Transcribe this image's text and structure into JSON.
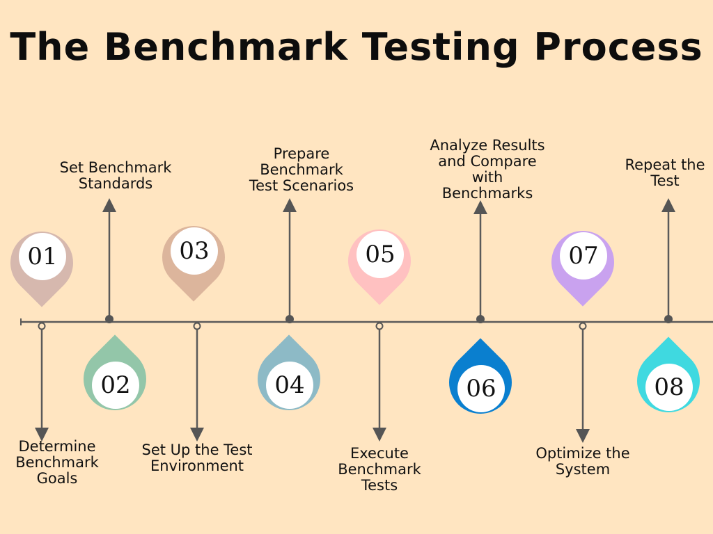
{
  "title": "The Benchmark Testing Process",
  "steps": [
    {
      "number": "01",
      "label": "Determine Benchmark Goals",
      "lines": [
        "Determine",
        "Benchmark",
        "Goals"
      ],
      "color": "#d6b8ae"
    },
    {
      "number": "02",
      "label": "Set Benchmark Standards",
      "lines": [
        "Set Benchmark",
        "Standards"
      ],
      "color": "#93c6a9"
    },
    {
      "number": "03",
      "label": "Set Up the Test Environment",
      "lines": [
        "Set Up the Test",
        "Environment"
      ],
      "color": "#dcb59c"
    },
    {
      "number": "04",
      "label": "Prepare Benchmark Test Scenarios",
      "lines": [
        "Prepare",
        "Benchmark",
        "Test Scenarios"
      ],
      "color": "#8dbac6"
    },
    {
      "number": "05",
      "label": "Execute Benchmark Tests",
      "lines": [
        "Execute",
        "Benchmark",
        "Tests"
      ],
      "color": "#ffc1c1"
    },
    {
      "number": "06",
      "label": "Analyze Results and Compare with Benchmarks",
      "lines": [
        "Analyze Results",
        "and Compare",
        "with",
        "Benchmarks"
      ],
      "color": "#0a7fcf"
    },
    {
      "number": "07",
      "label": "Optimize the System",
      "lines": [
        "Optimize the",
        "System"
      ],
      "color": "#c9a2ef"
    },
    {
      "number": "08",
      "label": "Repeat the Test",
      "lines": [
        "Repeat the",
        "Test"
      ],
      "color": "#3fd9e0"
    }
  ]
}
